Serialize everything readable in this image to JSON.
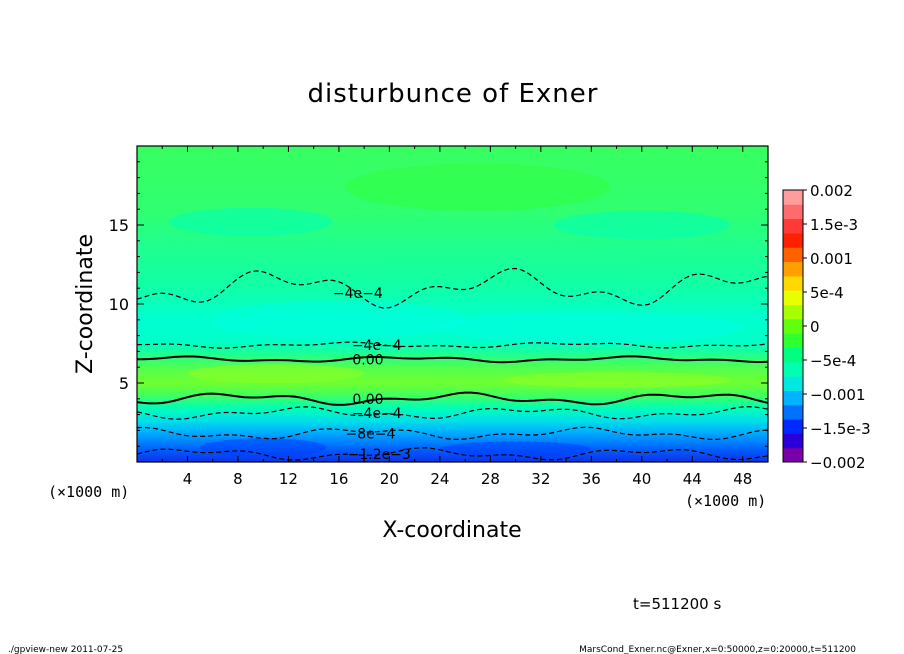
{
  "chart_data": {
    "type": "heatmap",
    "title": "disturbunce of Exner",
    "xlabel": "X-coordinate",
    "ylabel": "Z-coordinate",
    "x_unit": "(×1000 m)",
    "x_unit_right": "(×1000 m)",
    "xlim": [
      0,
      50
    ],
    "ylim": [
      0,
      20
    ],
    "xticks": [
      4,
      8,
      12,
      16,
      20,
      24,
      28,
      32,
      36,
      40,
      44,
      48
    ],
    "yticks": [
      5,
      10,
      15
    ],
    "colorbar": {
      "range": [
        -0.002,
        0.002
      ],
      "tick_values": [
        0.002,
        0.0015,
        0.001,
        0.0005,
        0,
        -0.0005,
        -0.001,
        -0.0015,
        -0.002
      ],
      "tick_labels": [
        "0.002",
        "1.5e-3",
        "0.001",
        "5e-4",
        "0",
        "−5e-4",
        "−0.001",
        "−1.5e-3",
        "−0.002"
      ],
      "colors": [
        "#7a00a8",
        "#2a00d8",
        "#0028ff",
        "#0070ff",
        "#00b4ff",
        "#00e8e0",
        "#00ffb0",
        "#00ff80",
        "#30ff30",
        "#60ff10",
        "#a8ff00",
        "#e8ff00",
        "#ffd800",
        "#ffa000",
        "#ff6000",
        "#ff2000",
        "#ff3838",
        "#ff6a6a",
        "#ff9c9c"
      ]
    },
    "contour_labels": [
      {
        "text": "−4e−4",
        "x": 17.5,
        "z": 10.7
      },
      {
        "text": "−4e−4",
        "x": 19,
        "z": 7.4
      },
      {
        "text": "0.00",
        "x": 18.3,
        "z": 6.5
      },
      {
        "text": "0.00",
        "x": 18.3,
        "z": 4.0
      },
      {
        "text": "−4e−4",
        "x": 19,
        "z": 3.1
      },
      {
        "text": "−8e−4",
        "x": 18.5,
        "z": 1.8
      },
      {
        "text": "−1.2e−3",
        "x": 19.2,
        "z": 0.5
      }
    ],
    "levels": [
      {
        "z": 0.5,
        "v": -0.0012
      },
      {
        "z": 1.8,
        "v": -0.0008
      },
      {
        "z": 3.1,
        "v": -0.0004
      },
      {
        "z": 4.0,
        "v": 0
      },
      {
        "z": 6.5,
        "v": 0
      },
      {
        "z": 7.4,
        "v": -0.0004
      },
      {
        "z": 11.0,
        "v": -0.0004
      }
    ]
  },
  "time_label": "t=511200 s",
  "footer_left": "./gpview-new  2011-07-25",
  "footer_right": "MarsCond_Exner.nc@Exner,x=0:50000,z=0:20000,t=511200"
}
